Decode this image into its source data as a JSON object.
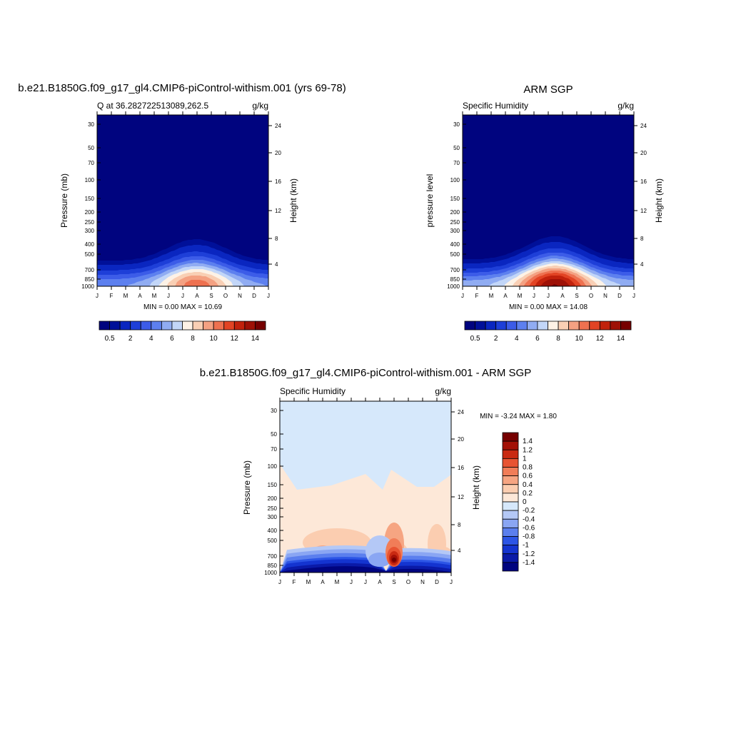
{
  "chart_data": [
    {
      "type": "contour",
      "title": "b.e21.B1850G.f09_g17_gl4.CMIP6-piControl-withism.001 (yrs 69-78)",
      "left_string": "Q at 36.282722513089,262.5",
      "right_string": "g/kg",
      "ylabel": "Pressure (mb)",
      "ylabel_right": "Height (km)",
      "x_ticks": [
        "J",
        "F",
        "M",
        "A",
        "M",
        "J",
        "J",
        "A",
        "S",
        "O",
        "N",
        "D",
        "J"
      ],
      "y_ticks": [
        "30",
        "50",
        "70",
        "100",
        "150",
        "200",
        "250",
        "300",
        "400",
        "500",
        "700",
        "850",
        "1000"
      ],
      "y_right_ticks": [
        "4",
        "8",
        "12",
        "16",
        "20",
        "24"
      ],
      "stats": "MIN =   0.00 MAX =  10.69",
      "levels": [
        0.5,
        1,
        2,
        3,
        4,
        5,
        6,
        7,
        8,
        9,
        10,
        11,
        12,
        13,
        14
      ],
      "colorbar_labels": [
        "0.5",
        "2",
        "4",
        "6",
        "8",
        "10",
        "12",
        "14"
      ],
      "colors": [
        "#00047f",
        "#001099",
        "#0a26c0",
        "#1e3fd8",
        "#3c5ce8",
        "#5d80ef",
        "#90acf2",
        "#c2d6f8",
        "#fdf2e6",
        "#f9cfb4",
        "#f4a182",
        "#ee7150",
        "#e24424",
        "#c1220c",
        "#9e1106",
        "#760000"
      ]
    },
    {
      "type": "contour",
      "title": "ARM SGP",
      "left_string": "Specific Humidity",
      "right_string": "g/kg",
      "ylabel": "pressure level",
      "ylabel_right": "Height (km)",
      "x_ticks": [
        "J",
        "F",
        "M",
        "A",
        "M",
        "J",
        "J",
        "A",
        "S",
        "O",
        "N",
        "D",
        "J"
      ],
      "y_ticks": [
        "30",
        "50",
        "70",
        "100",
        "150",
        "200",
        "250",
        "300",
        "400",
        "500",
        "700",
        "850",
        "1000"
      ],
      "y_right_ticks": [
        "4",
        "8",
        "12",
        "16",
        "20",
        "24"
      ],
      "stats": "MIN =   0.00 MAX =  14.08",
      "levels": [
        0.5,
        1,
        2,
        3,
        4,
        5,
        6,
        7,
        8,
        9,
        10,
        11,
        12,
        13,
        14
      ],
      "colorbar_labels": [
        "0.5",
        "2",
        "4",
        "6",
        "8",
        "10",
        "12",
        "14"
      ],
      "colors": [
        "#00047f",
        "#001099",
        "#0a26c0",
        "#1e3fd8",
        "#3c5ce8",
        "#5d80ef",
        "#90acf2",
        "#c2d6f8",
        "#fdf2e6",
        "#f9cfb4",
        "#f4a182",
        "#ee7150",
        "#e24424",
        "#c1220c",
        "#9e1106",
        "#760000"
      ]
    },
    {
      "type": "contour",
      "title": "b.e21.B1850G.f09_g17_gl4.CMIP6-piControl-withism.001 - ARM SGP",
      "left_string": "Specific Humidity",
      "right_string": "g/kg",
      "ylabel": "Pressure (mb)",
      "ylabel_right": "Height (km)",
      "x_ticks": [
        "J",
        "F",
        "M",
        "A",
        "M",
        "J",
        "J",
        "A",
        "S",
        "O",
        "N",
        "D",
        "J"
      ],
      "y_ticks": [
        "30",
        "50",
        "70",
        "100",
        "150",
        "200",
        "250",
        "300",
        "400",
        "500",
        "700",
        "850",
        "1000"
      ],
      "y_right_ticks": [
        "4",
        "8",
        "12",
        "16",
        "20",
        "24"
      ],
      "stats": "MIN =  -3.24 MAX =   1.80",
      "levels": [
        -1.4,
        -1.2,
        -1,
        -0.8,
        -0.6,
        -0.4,
        -0.2,
        0,
        0.2,
        0.4,
        0.6,
        0.8,
        1,
        1.2,
        1.4
      ],
      "colorbar_labels": [
        "1.4",
        "1.2",
        "1",
        "0.8",
        "0.6",
        "0.4",
        "0.2",
        "0",
        "-0.2",
        "-0.4",
        "-0.6",
        "-0.8",
        "-1",
        "-1.2",
        "-1.4"
      ],
      "colors": [
        "#00047f",
        "#0a1aa8",
        "#1434d0",
        "#2c55e6",
        "#5b7fee",
        "#8aa6f3",
        "#b4c8f6",
        "#d6e8fb",
        "#fde8d8",
        "#fbcdb0",
        "#f6a582",
        "#f17d58",
        "#e85432",
        "#c92a12",
        "#a31006",
        "#760000"
      ]
    }
  ]
}
